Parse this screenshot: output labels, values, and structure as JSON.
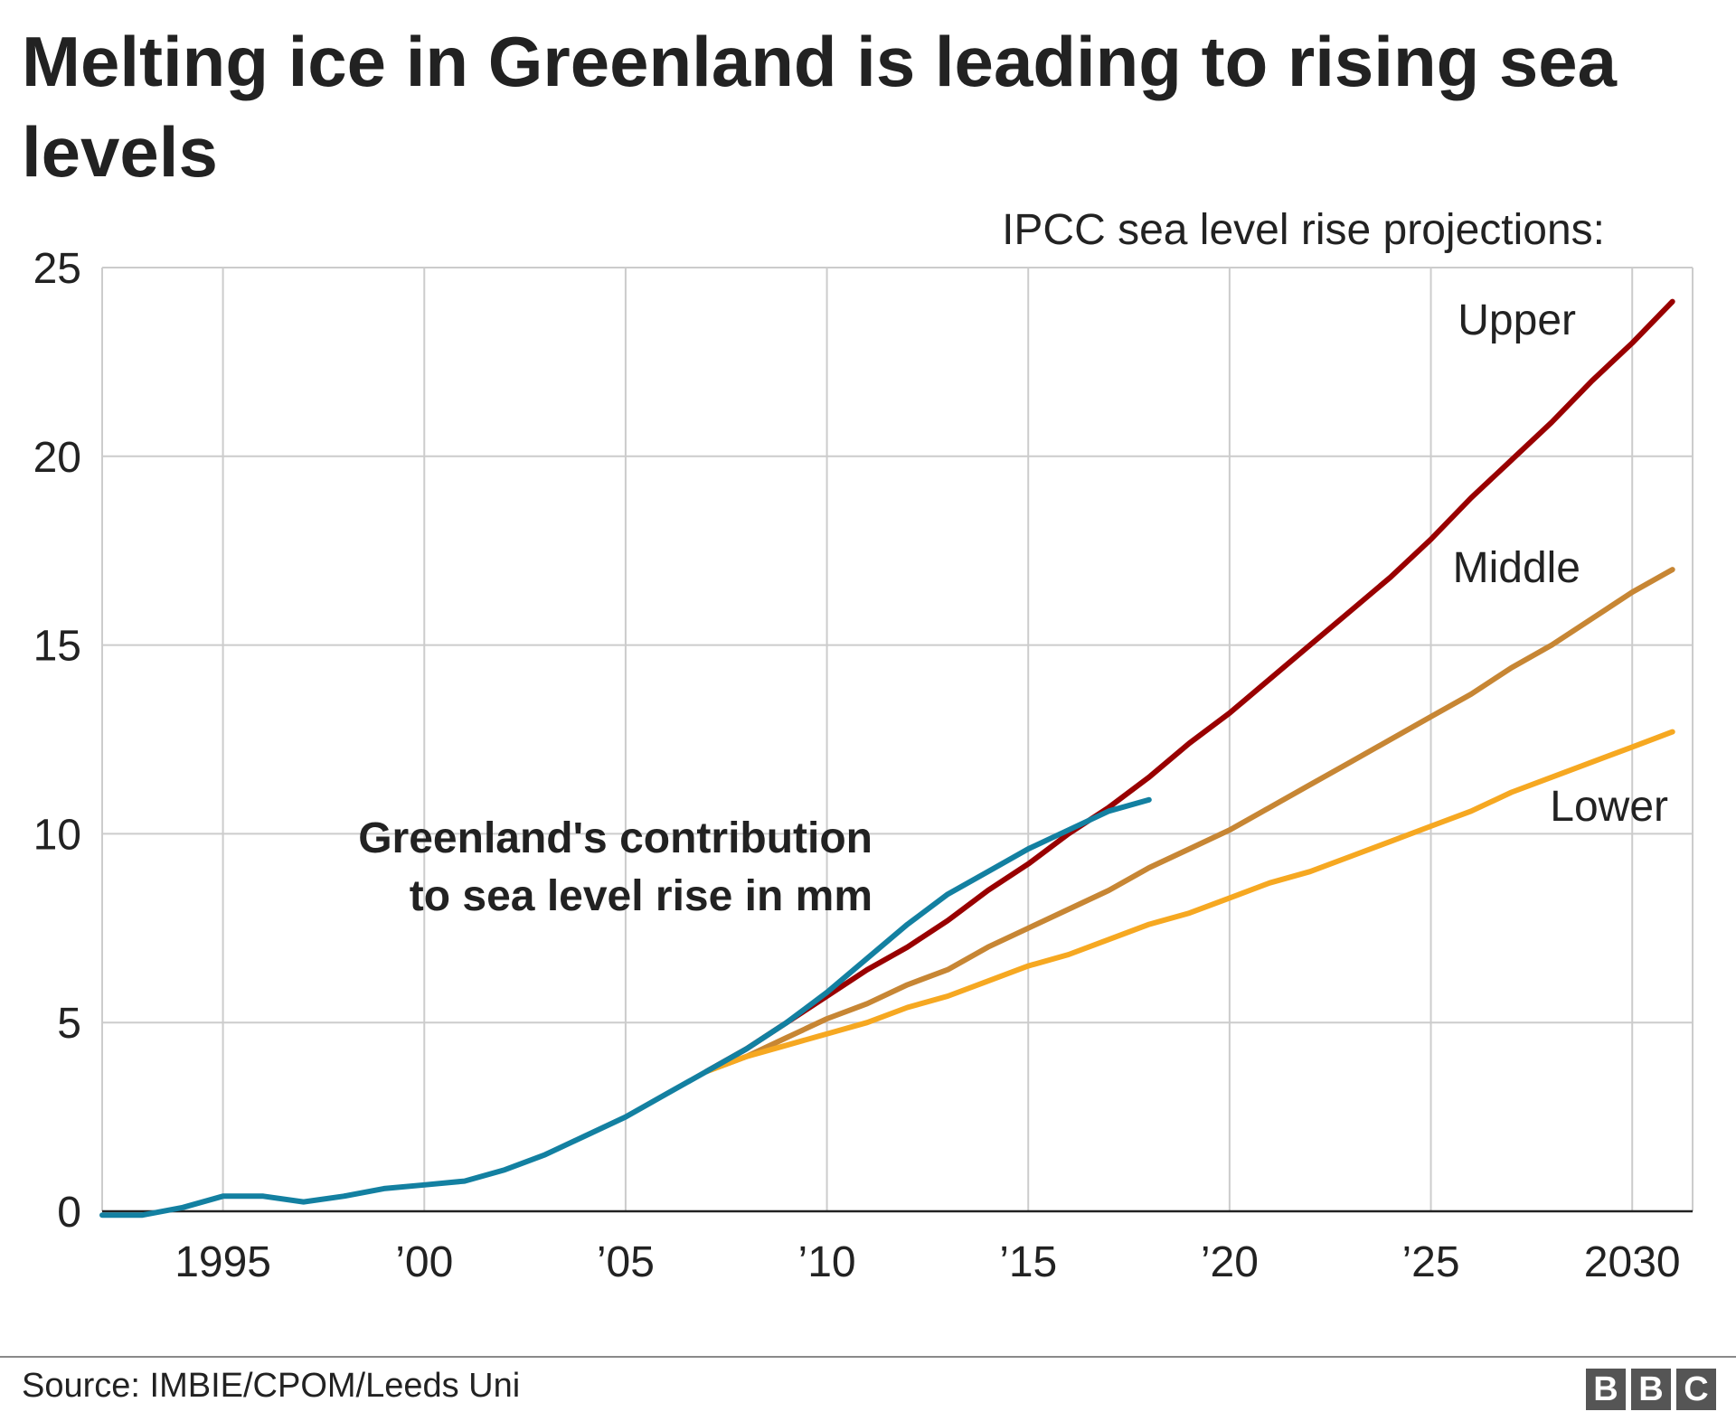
{
  "title": "Melting ice in Greenland is leading to rising sea levels",
  "source": "Source: IMBIE/CPOM/Leeds Uni",
  "logo_letters": [
    "B",
    "B",
    "C"
  ],
  "chart_data": {
    "type": "line",
    "title": "Melting ice in Greenland is leading to rising sea levels",
    "legend_title": "IPCC sea level rise projections:",
    "annotation": [
      "Greenland's contribution",
      "to sea level rise in mm"
    ],
    "xlim": [
      1992,
      2031.5
    ],
    "ylim": [
      0,
      25
    ],
    "grid": true,
    "x_ticks": [
      {
        "value": 1995,
        "label": "1995"
      },
      {
        "value": 2000,
        "label": "’00"
      },
      {
        "value": 2005,
        "label": "’05"
      },
      {
        "value": 2010,
        "label": "’10"
      },
      {
        "value": 2015,
        "label": "’15"
      },
      {
        "value": 2020,
        "label": "’20"
      },
      {
        "value": 2025,
        "label": "’25"
      },
      {
        "value": 2030,
        "label": "2030"
      }
    ],
    "y_ticks": [
      0,
      5,
      10,
      15,
      20,
      25
    ],
    "series": [
      {
        "name": "Upper",
        "color": "#990000",
        "x": [
          2007,
          2008,
          2009,
          2010,
          2011,
          2012,
          2013,
          2014,
          2015,
          2016,
          2017,
          2018,
          2019,
          2020,
          2021,
          2022,
          2023,
          2024,
          2025,
          2026,
          2027,
          2028,
          2029,
          2030,
          2031
        ],
        "y": [
          3.7,
          4.3,
          5.0,
          5.7,
          6.4,
          7.0,
          7.7,
          8.5,
          9.2,
          10.0,
          10.7,
          11.5,
          12.4,
          13.2,
          14.1,
          15.0,
          15.9,
          16.8,
          17.8,
          18.9,
          19.9,
          20.9,
          22.0,
          23.0,
          24.1
        ]
      },
      {
        "name": "Middle",
        "color": "#c78634",
        "x": [
          2007,
          2008,
          2009,
          2010,
          2011,
          2012,
          2013,
          2014,
          2015,
          2016,
          2017,
          2018,
          2019,
          2020,
          2021,
          2022,
          2023,
          2024,
          2025,
          2026,
          2027,
          2028,
          2029,
          2030,
          2031
        ],
        "y": [
          3.7,
          4.1,
          4.6,
          5.1,
          5.5,
          6.0,
          6.4,
          7.0,
          7.5,
          8.0,
          8.5,
          9.1,
          9.6,
          10.1,
          10.7,
          11.3,
          11.9,
          12.5,
          13.1,
          13.7,
          14.4,
          15.0,
          15.7,
          16.4,
          17.0
        ]
      },
      {
        "name": "Lower",
        "color": "#f6a821",
        "x": [
          2007,
          2008,
          2009,
          2010,
          2011,
          2012,
          2013,
          2014,
          2015,
          2016,
          2017,
          2018,
          2019,
          2020,
          2021,
          2022,
          2023,
          2024,
          2025,
          2026,
          2027,
          2028,
          2029,
          2030,
          2031
        ],
        "y": [
          3.7,
          4.1,
          4.4,
          4.7,
          5.0,
          5.4,
          5.7,
          6.1,
          6.5,
          6.8,
          7.2,
          7.6,
          7.9,
          8.3,
          8.7,
          9.0,
          9.4,
          9.8,
          10.2,
          10.6,
          11.1,
          11.5,
          11.9,
          12.3,
          12.7
        ]
      },
      {
        "name": "Greenland's contribution to sea level rise in mm",
        "color": "#1380a1",
        "x": [
          1992,
          1993,
          1994,
          1995,
          1996,
          1997,
          1998,
          1999,
          2000,
          2001,
          2002,
          2003,
          2004,
          2005,
          2006,
          2007,
          2008,
          2009,
          2010,
          2011,
          2012,
          2013,
          2014,
          2015,
          2016,
          2017,
          2018
        ],
        "y": [
          -0.1,
          -0.1,
          0.1,
          0.4,
          0.4,
          0.25,
          0.4,
          0.6,
          0.7,
          0.8,
          1.1,
          1.5,
          2.0,
          2.5,
          3.1,
          3.7,
          4.3,
          5.0,
          5.8,
          6.7,
          7.6,
          8.4,
          9.0,
          9.6,
          10.1,
          10.6,
          10.9
        ]
      }
    ]
  }
}
